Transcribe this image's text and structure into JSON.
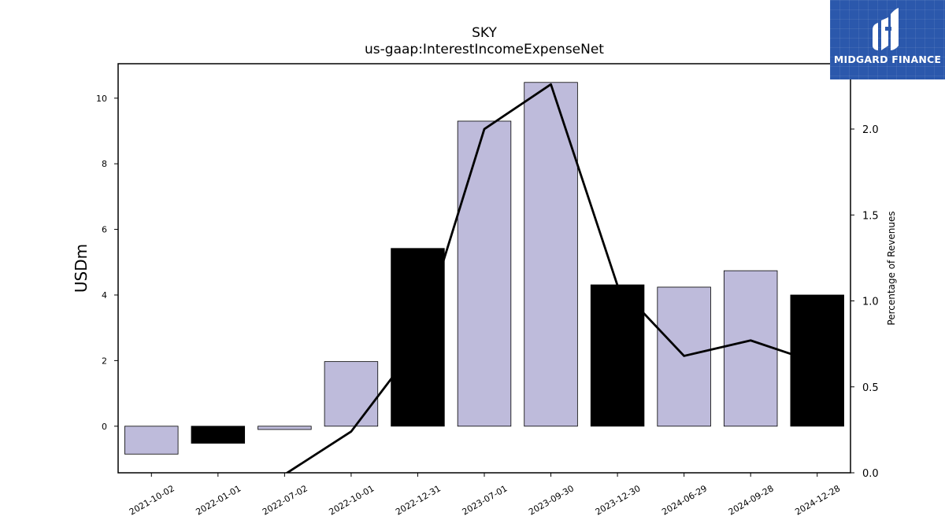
{
  "header": {
    "title": "SKY",
    "subtitle": "us-gaap:InterestIncomeExpenseNet"
  },
  "logo": {
    "text": "MIDGARD FINANCE",
    "icon": "midgard-logo-icon",
    "background": "#2b58ac"
  },
  "chart_data": {
    "type": "bar",
    "categories": [
      "2021-10-02",
      "2022-01-01",
      "2022-07-02",
      "2022-10-01",
      "2022-12-31",
      "2023-07-01",
      "2023-09-30",
      "2023-12-30",
      "2024-06-29",
      "2024-09-28",
      "2024-12-28"
    ],
    "series": [
      {
        "type": "bar",
        "axis": "left",
        "values": [
          -0.85,
          -0.52,
          -0.1,
          1.97,
          5.42,
          9.3,
          10.48,
          4.31,
          4.24,
          4.74,
          4.0
        ],
        "colors": [
          "#bebbdb",
          "#000000",
          "#bebbdb",
          "#bebbdb",
          "#000000",
          "#bebbdb",
          "#bebbdb",
          "#000000",
          "#bebbdb",
          "#bebbdb",
          "#000000"
        ]
      },
      {
        "type": "line",
        "axis": "right",
        "values": [
          null,
          null,
          -0.01,
          0.24,
          0.75,
          2.0,
          2.26,
          1.09,
          0.68,
          0.77,
          0.64
        ],
        "color": "#000000"
      }
    ],
    "ylabel": "USDm",
    "ylabel_right": "Percentage of Revenues",
    "ylim": [
      -1.42,
      11.05
    ],
    "ylim_right": [
      0.0,
      2.38
    ],
    "yticks": [
      0,
      2,
      4,
      6,
      8,
      10
    ],
    "yticks_right": [
      "0.0",
      "0.5",
      "1.0",
      "1.5",
      "2.0"
    ],
    "grid": false,
    "legend": "none"
  }
}
